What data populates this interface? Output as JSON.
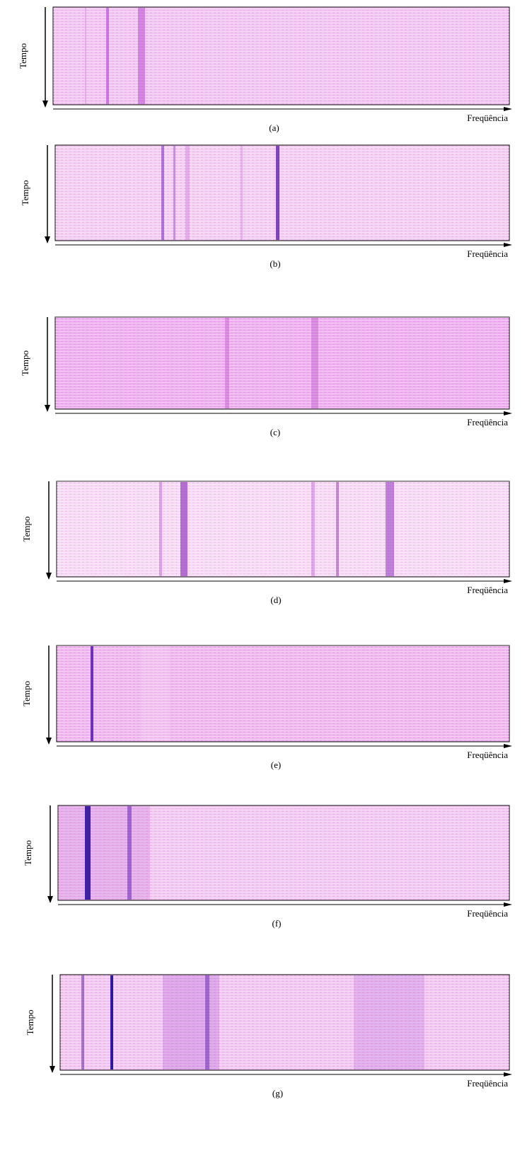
{
  "panels": [
    {
      "y_label": "Tempo",
      "x_label": "Freqüência",
      "caption": "(a)"
    },
    {
      "y_label": "Tempo",
      "x_label": "Freqüência",
      "caption": "(b)"
    },
    {
      "y_label": "Tempo",
      "x_label": "Freqüência",
      "caption": "(c)"
    },
    {
      "y_label": "Tempo",
      "x_label": "Freqüência",
      "caption": "(d)"
    },
    {
      "y_label": "Tempo",
      "x_label": "Freqüência",
      "caption": "(e)"
    },
    {
      "y_label": "Tempo",
      "x_label": "Freqüência",
      "caption": "(f)"
    },
    {
      "y_label": "Tempo",
      "x_label": "Freqüência",
      "caption": "(g)"
    }
  ]
}
